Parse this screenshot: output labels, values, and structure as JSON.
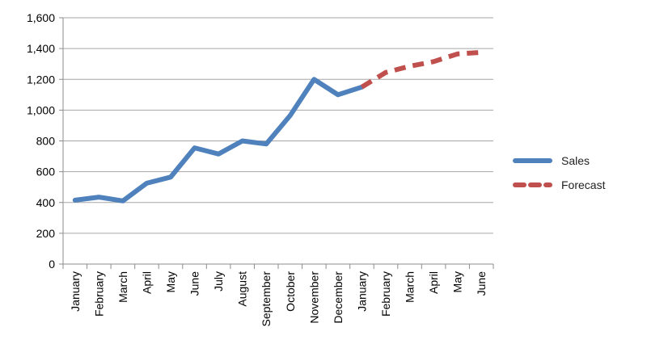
{
  "chart_data": {
    "type": "line",
    "title": "",
    "xlabel": "",
    "ylabel": "",
    "categories": [
      "January",
      "February",
      "March",
      "April",
      "May",
      "June",
      "July",
      "August",
      "September",
      "October",
      "November",
      "December",
      "January",
      "February",
      "March",
      "April",
      "May",
      "June"
    ],
    "ylim": [
      0,
      1600
    ],
    "yticks": [
      0,
      200,
      400,
      600,
      800,
      1000,
      1200,
      1400,
      1600
    ],
    "ytick_labels": [
      "0",
      "200",
      "400",
      "600",
      "800",
      "1,000",
      "1,200",
      "1,400",
      "1,600"
    ],
    "grid": true,
    "legend_position": "right",
    "series": [
      {
        "name": "Sales",
        "color": "#4f81bd",
        "style": "solid",
        "values": [
          415,
          435,
          410,
          525,
          565,
          755,
          715,
          800,
          780,
          965,
          1200,
          1100,
          1150,
          null,
          null,
          null,
          null,
          null
        ]
      },
      {
        "name": "Forecast",
        "color": "#c0504d",
        "style": "dashed",
        "values": [
          null,
          null,
          null,
          null,
          null,
          null,
          null,
          null,
          null,
          null,
          null,
          null,
          1150,
          1245,
          1285,
          1315,
          1365,
          1375
        ]
      }
    ]
  }
}
